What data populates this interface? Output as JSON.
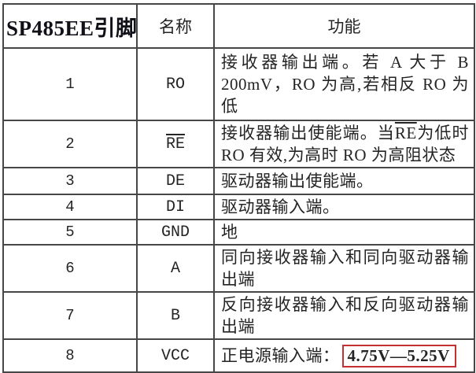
{
  "page_title": "SP485EE 引脚功能表",
  "colors": {
    "background": "#ffffff",
    "border": "#474747",
    "text": "#242424",
    "highlight_border": "#c53030"
  },
  "table": {
    "headers": [
      "SP485EE引脚",
      "名称",
      "功能"
    ],
    "rows": [
      {
        "pin": "1",
        "name": "RO",
        "name_overline": false,
        "function": [
          {
            "text": "接收器输出端。若 A 大于 B 200mV，RO 为高,若相反 RO 为低",
            "style": "normal"
          }
        ]
      },
      {
        "pin": "2",
        "name": "RE",
        "name_overline": true,
        "function": [
          {
            "text": "接收器输出使能端。当",
            "style": "normal"
          },
          {
            "text": "RE",
            "style": "overline"
          },
          {
            "text": "为低时 RO 有效,为高时 RO 为高阻状态",
            "style": "normal"
          }
        ]
      },
      {
        "pin": "3",
        "name": "DE",
        "name_overline": false,
        "function": [
          {
            "text": "驱动器输出使能端。",
            "style": "normal"
          }
        ]
      },
      {
        "pin": "4",
        "name": "DI",
        "name_overline": false,
        "function": [
          {
            "text": "驱动器输入端。",
            "style": "normal"
          }
        ]
      },
      {
        "pin": "5",
        "name": "GND",
        "name_overline": false,
        "function": [
          {
            "text": "地",
            "style": "normal"
          }
        ]
      },
      {
        "pin": "6",
        "name": "A",
        "name_overline": false,
        "function": [
          {
            "text": "同向接收器输入和同向驱动器输出端",
            "style": "normal"
          }
        ]
      },
      {
        "pin": "7",
        "name": "B",
        "name_overline": false,
        "function": [
          {
            "text": "反向接收器输入和反向驱动器输出端",
            "style": "normal"
          }
        ]
      },
      {
        "pin": "8",
        "name": "VCC",
        "name_overline": false,
        "function": [
          {
            "text": "正电源输入端：",
            "style": "normal"
          },
          {
            "text": "4.75V—5.25V",
            "style": "redbox"
          }
        ]
      }
    ]
  }
}
